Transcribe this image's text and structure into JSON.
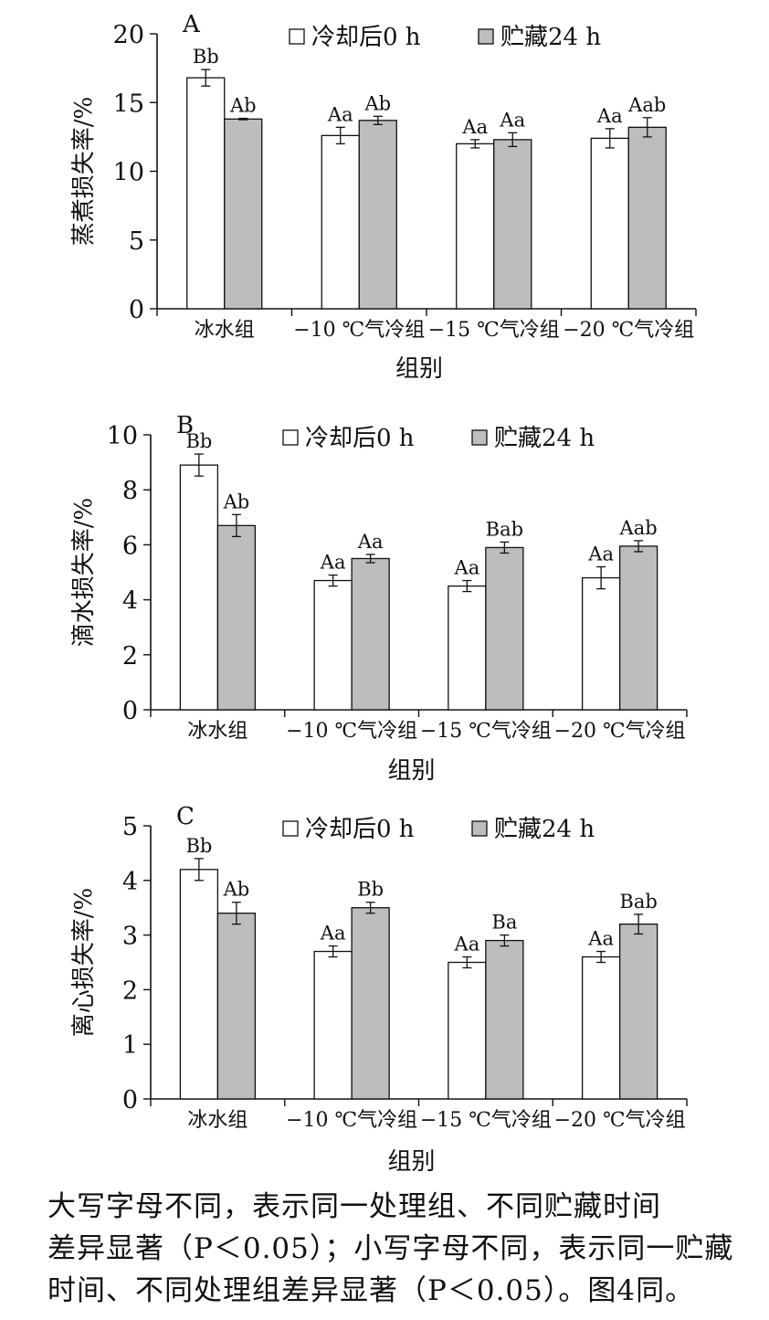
{
  "chart_data": [
    {
      "type": "bar",
      "panel_label": "A",
      "categories": [
        "冰水组",
        "−10 ℃气冷组",
        "−15 ℃气冷组",
        "−20 ℃气冷组"
      ],
      "series": [
        {
          "name": "冷却后0 h",
          "values": [
            16.8,
            12.6,
            12.0,
            12.4
          ],
          "errors": [
            0.6,
            0.6,
            0.3,
            0.7
          ],
          "labels": [
            "Bb",
            "Aa",
            "Aa",
            "Aa"
          ]
        },
        {
          "name": "贮藏24 h",
          "values": [
            13.8,
            13.7,
            12.3,
            13.2
          ],
          "errors": [
            0.05,
            0.3,
            0.5,
            0.7
          ],
          "labels": [
            "Ab",
            "Ab",
            "Aa",
            "Aab"
          ]
        }
      ],
      "xlabel": "组别",
      "ylabel": "蒸煮损失率/%",
      "ylim": [
        0,
        20
      ],
      "yticks": [
        "0",
        "5",
        "10",
        "15",
        "20"
      ],
      "grid": false,
      "legend": "top"
    },
    {
      "type": "bar",
      "panel_label": "B",
      "categories": [
        "冰水组",
        "−10 ℃气冷组",
        "−15 ℃气冷组",
        "−20 ℃气冷组"
      ],
      "series": [
        {
          "name": "冷却后0 h",
          "values": [
            8.9,
            4.7,
            4.5,
            4.8
          ],
          "errors": [
            0.4,
            0.2,
            0.2,
            0.4
          ],
          "labels": [
            "Bb",
            "Aa",
            "Aa",
            "Aa"
          ]
        },
        {
          "name": "贮藏24 h",
          "values": [
            6.7,
            5.5,
            5.9,
            5.95
          ],
          "errors": [
            0.4,
            0.15,
            0.2,
            0.2
          ],
          "labels": [
            "Ab",
            "Aa",
            "Bab",
            "Aab"
          ]
        }
      ],
      "xlabel": "组别",
      "ylabel": "滴水损失率/%",
      "ylim": [
        0,
        10
      ],
      "yticks": [
        "0",
        "2",
        "4",
        "6",
        "8",
        "10"
      ],
      "grid": false,
      "legend": "top"
    },
    {
      "type": "bar",
      "panel_label": "C",
      "categories": [
        "冰水组",
        "−10 ℃气冷组",
        "−15 ℃气冷组",
        "−20 ℃气冷组"
      ],
      "series": [
        {
          "name": "冷却后0 h",
          "values": [
            4.2,
            2.7,
            2.5,
            2.6
          ],
          "errors": [
            0.2,
            0.1,
            0.1,
            0.1
          ],
          "labels": [
            "Bb",
            "Aa",
            "Aa",
            "Aa"
          ]
        },
        {
          "name": "贮藏24 h",
          "values": [
            3.4,
            3.5,
            2.9,
            3.2
          ],
          "errors": [
            0.2,
            0.1,
            0.1,
            0.18
          ],
          "labels": [
            "Ab",
            "Bb",
            "Ba",
            "Bab"
          ]
        }
      ],
      "xlabel": "组别",
      "ylabel": "离心损失率/%",
      "ylim": [
        0,
        5
      ],
      "yticks": [
        "0",
        "1",
        "2",
        "3",
        "4",
        "5"
      ],
      "grid": false,
      "legend": "top"
    }
  ],
  "colors": {
    "series_0_fill": "#ffffff",
    "series_1_fill": "#bdbdbd",
    "stroke": "#111111"
  },
  "caption": {
    "line1": "大写字母不同，表示同一处理组、不同贮藏时间",
    "line2": "差异显著（P＜0.05）；小写字母不同，表示同一贮藏",
    "line3": "时间、不同处理组差异显著（P＜0.05）。图4同。"
  }
}
